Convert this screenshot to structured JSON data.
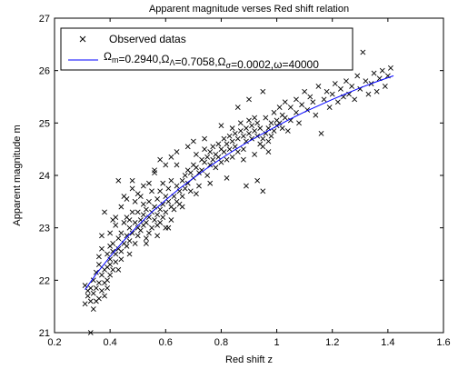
{
  "chart_data": {
    "type": "scatter",
    "title": "Apparent magnitude verses Red shift relation",
    "xlabel": "Red shift z",
    "ylabel": "Apparent magnitude m",
    "xlim": [
      0.2,
      1.6
    ],
    "ylim": [
      21,
      27
    ],
    "x_ticks": [
      "0.2",
      "0.4",
      "0.6",
      "0.8",
      "1",
      "1.2",
      "1.4",
      "1.6"
    ],
    "y_ticks": [
      "21",
      "22",
      "23",
      "24",
      "25",
      "26",
      "27"
    ],
    "grid": false,
    "legend_position": "top-left",
    "legend": {
      "scatter_label": "Observed datas",
      "fit_label_parts": [
        {
          "text": "Ω",
          "sub": false
        },
        {
          "text": "m",
          "sub": true
        },
        {
          "text": "=0.2940,Ω",
          "sub": false
        },
        {
          "text": "Λ",
          "sub": true
        },
        {
          "text": "=0.7058,Ω",
          "sub": false
        },
        {
          "text": "σ",
          "sub": true
        },
        {
          "text": "=0.0002,ω=40000",
          "sub": false
        }
      ]
    },
    "colors": {
      "scatter": "#000000",
      "fit": "#0000ff"
    },
    "series": [
      {
        "name": "Observed datas",
        "marker": "x",
        "points": [
          [
            0.31,
            21.9
          ],
          [
            0.31,
            21.55
          ],
          [
            0.32,
            21.7
          ],
          [
            0.32,
            21.8
          ],
          [
            0.33,
            21.6
          ],
          [
            0.33,
            21.85
          ],
          [
            0.33,
            21.0
          ],
          [
            0.34,
            21.75
          ],
          [
            0.34,
            22.0
          ],
          [
            0.35,
            21.6
          ],
          [
            0.35,
            21.85
          ],
          [
            0.35,
            22.15
          ],
          [
            0.36,
            22.3
          ],
          [
            0.36,
            21.95
          ],
          [
            0.36,
            22.45
          ],
          [
            0.37,
            22.6
          ],
          [
            0.37,
            22.1
          ],
          [
            0.37,
            21.8
          ],
          [
            0.38,
            22.2
          ],
          [
            0.38,
            21.95
          ],
          [
            0.38,
            21.7
          ],
          [
            0.39,
            22.5
          ],
          [
            0.39,
            22.25
          ],
          [
            0.39,
            22.0
          ],
          [
            0.4,
            22.4
          ],
          [
            0.4,
            22.1
          ],
          [
            0.4,
            22.65
          ],
          [
            0.4,
            22.3
          ],
          [
            0.41,
            22.55
          ],
          [
            0.41,
            22.2
          ],
          [
            0.41,
            22.7
          ],
          [
            0.42,
            23.2
          ],
          [
            0.42,
            22.5
          ],
          [
            0.42,
            22.35
          ],
          [
            0.43,
            22.8
          ],
          [
            0.43,
            22.6
          ],
          [
            0.43,
            23.9
          ],
          [
            0.44,
            22.9
          ],
          [
            0.44,
            22.55
          ],
          [
            0.44,
            22.4
          ],
          [
            0.45,
            22.7
          ],
          [
            0.45,
            23.1
          ],
          [
            0.45,
            23.6
          ],
          [
            0.46,
            22.85
          ],
          [
            0.46,
            22.65
          ],
          [
            0.46,
            23.2
          ],
          [
            0.47,
            23.0
          ],
          [
            0.47,
            22.75
          ],
          [
            0.47,
            23.15
          ],
          [
            0.48,
            23.3
          ],
          [
            0.48,
            22.9
          ],
          [
            0.48,
            23.75
          ],
          [
            0.49,
            23.1
          ],
          [
            0.49,
            22.7
          ],
          [
            0.49,
            23.5
          ],
          [
            0.5,
            23.0
          ],
          [
            0.5,
            23.3
          ],
          [
            0.5,
            22.85
          ],
          [
            0.51,
            23.15
          ],
          [
            0.51,
            22.95
          ],
          [
            0.51,
            23.6
          ],
          [
            0.52,
            23.25
          ],
          [
            0.52,
            23.05
          ],
          [
            0.52,
            23.45
          ],
          [
            0.53,
            23.1
          ],
          [
            0.53,
            23.35
          ],
          [
            0.53,
            22.8
          ],
          [
            0.54,
            23.5
          ],
          [
            0.54,
            23.2
          ],
          [
            0.54,
            22.9
          ],
          [
            0.55,
            23.3
          ],
          [
            0.55,
            23.0
          ],
          [
            0.55,
            23.7
          ],
          [
            0.56,
            23.15
          ],
          [
            0.56,
            23.4
          ],
          [
            0.56,
            24.1
          ],
          [
            0.57,
            23.25
          ],
          [
            0.57,
            23.55
          ],
          [
            0.57,
            23.05
          ],
          [
            0.58,
            23.35
          ],
          [
            0.58,
            23.7
          ],
          [
            0.58,
            23.1
          ],
          [
            0.59,
            23.45
          ],
          [
            0.59,
            23.2
          ],
          [
            0.59,
            23.85
          ],
          [
            0.6,
            23.6
          ],
          [
            0.6,
            23.3
          ],
          [
            0.6,
            23.0
          ],
          [
            0.61,
            23.5
          ],
          [
            0.61,
            23.75
          ],
          [
            0.62,
            23.4
          ],
          [
            0.62,
            23.9
          ],
          [
            0.62,
            23.15
          ],
          [
            0.63,
            23.6
          ],
          [
            0.63,
            23.35
          ],
          [
            0.64,
            23.8
          ],
          [
            0.64,
            23.5
          ],
          [
            0.64,
            24.2
          ],
          [
            0.65,
            23.7
          ],
          [
            0.65,
            23.45
          ],
          [
            0.66,
            23.9
          ],
          [
            0.66,
            23.6
          ],
          [
            0.67,
            24.0
          ],
          [
            0.67,
            23.75
          ],
          [
            0.68,
            24.1
          ],
          [
            0.68,
            23.85
          ],
          [
            0.69,
            24.05
          ],
          [
            0.69,
            23.7
          ],
          [
            0.7,
            24.2
          ],
          [
            0.7,
            23.95
          ],
          [
            0.71,
            24.15
          ],
          [
            0.71,
            24.4
          ],
          [
            0.72,
            24.05
          ],
          [
            0.72,
            23.8
          ],
          [
            0.73,
            24.3
          ],
          [
            0.73,
            24.1
          ],
          [
            0.74,
            24.25
          ],
          [
            0.74,
            24.5
          ],
          [
            0.75,
            24.35
          ],
          [
            0.75,
            24.0
          ],
          [
            0.76,
            24.45
          ],
          [
            0.76,
            24.2
          ],
          [
            0.77,
            24.55
          ],
          [
            0.77,
            24.3
          ],
          [
            0.78,
            24.4
          ],
          [
            0.78,
            24.15
          ],
          [
            0.79,
            24.6
          ],
          [
            0.79,
            24.35
          ],
          [
            0.8,
            24.5
          ],
          [
            0.8,
            24.25
          ],
          [
            0.81,
            24.7
          ],
          [
            0.81,
            24.45
          ],
          [
            0.82,
            24.6
          ],
          [
            0.82,
            24.3
          ],
          [
            0.83,
            24.75
          ],
          [
            0.83,
            24.5
          ],
          [
            0.84,
            24.65
          ],
          [
            0.84,
            24.9
          ],
          [
            0.85,
            24.55
          ],
          [
            0.85,
            24.8
          ],
          [
            0.86,
            24.7
          ],
          [
            0.86,
            24.45
          ],
          [
            0.87,
            24.85
          ],
          [
            0.87,
            25.0
          ],
          [
            0.88,
            24.75
          ],
          [
            0.88,
            24.5
          ],
          [
            0.89,
            24.9
          ],
          [
            0.89,
            24.65
          ],
          [
            0.9,
            25.05
          ],
          [
            0.9,
            24.8
          ],
          [
            0.91,
            24.95
          ],
          [
            0.91,
            24.7
          ],
          [
            0.92,
            25.1
          ],
          [
            0.92,
            24.85
          ],
          [
            0.93,
            24.75
          ],
          [
            0.93,
            25.0
          ],
          [
            0.94,
            24.6
          ],
          [
            0.94,
            24.9
          ],
          [
            0.95,
            24.7
          ],
          [
            0.95,
            24.55
          ],
          [
            0.96,
            24.8
          ],
          [
            0.96,
            25.1
          ],
          [
            0.97,
            24.65
          ],
          [
            0.97,
            24.9
          ],
          [
            0.98,
            25.0
          ],
          [
            0.98,
            24.75
          ],
          [
            0.99,
            25.2
          ],
          [
            0.99,
            24.85
          ],
          [
            1.0,
            25.05
          ],
          [
            1.0,
            24.95
          ],
          [
            1.01,
            25.3
          ],
          [
            1.01,
            25.0
          ],
          [
            1.02,
            25.15
          ],
          [
            1.02,
            24.9
          ],
          [
            1.03,
            25.4
          ],
          [
            1.03,
            25.1
          ],
          [
            1.05,
            25.3
          ],
          [
            1.05,
            25.05
          ],
          [
            1.07,
            25.45
          ],
          [
            1.07,
            25.2
          ],
          [
            1.09,
            25.35
          ],
          [
            1.1,
            25.6
          ],
          [
            1.11,
            25.25
          ],
          [
            1.12,
            25.5
          ],
          [
            1.13,
            25.4
          ],
          [
            1.14,
            25.15
          ],
          [
            1.15,
            25.7
          ],
          [
            1.16,
            24.8
          ],
          [
            1.17,
            25.45
          ],
          [
            1.18,
            25.6
          ],
          [
            1.19,
            25.3
          ],
          [
            1.2,
            25.55
          ],
          [
            1.21,
            25.75
          ],
          [
            1.22,
            25.4
          ],
          [
            1.23,
            25.65
          ],
          [
            1.24,
            25.5
          ],
          [
            1.25,
            25.8
          ],
          [
            1.26,
            25.55
          ],
          [
            1.27,
            25.7
          ],
          [
            1.28,
            25.45
          ],
          [
            1.29,
            25.9
          ],
          [
            1.3,
            25.65
          ],
          [
            1.31,
            26.35
          ],
          [
            1.32,
            25.8
          ],
          [
            1.33,
            25.55
          ],
          [
            1.34,
            25.75
          ],
          [
            1.35,
            25.95
          ],
          [
            1.36,
            25.6
          ],
          [
            1.37,
            25.85
          ],
          [
            1.38,
            26.0
          ],
          [
            1.39,
            25.7
          ],
          [
            1.4,
            25.9
          ],
          [
            1.41,
            26.05
          ],
          [
            0.93,
            23.9
          ],
          [
            0.95,
            23.7
          ],
          [
            0.89,
            23.8
          ],
          [
            0.82,
            23.95
          ],
          [
            0.76,
            23.85
          ],
          [
            0.71,
            23.65
          ],
          [
            0.66,
            23.4
          ],
          [
            0.61,
            23.0
          ],
          [
            0.57,
            22.85
          ],
          [
            0.53,
            22.7
          ],
          [
            0.47,
            22.5
          ],
          [
            0.43,
            22.2
          ],
          [
            0.39,
            21.85
          ],
          [
            0.36,
            21.65
          ],
          [
            0.34,
            21.45
          ],
          [
            0.37,
            22.85
          ],
          [
            0.4,
            22.9
          ],
          [
            0.42,
            23.05
          ],
          [
            0.46,
            23.55
          ],
          [
            0.5,
            23.65
          ],
          [
            0.54,
            23.85
          ],
          [
            0.58,
            24.3
          ],
          [
            0.62,
            24.35
          ],
          [
            0.68,
            24.55
          ],
          [
            0.74,
            24.7
          ],
          [
            0.8,
            24.95
          ],
          [
            0.86,
            25.3
          ],
          [
            0.9,
            25.45
          ],
          [
            0.95,
            25.6
          ],
          [
            0.38,
            23.3
          ],
          [
            0.41,
            23.15
          ],
          [
            0.44,
            23.4
          ],
          [
            0.48,
            23.9
          ],
          [
            0.52,
            23.8
          ],
          [
            0.56,
            24.05
          ],
          [
            0.6,
            24.2
          ],
          [
            0.64,
            24.45
          ],
          [
            0.7,
            24.65
          ],
          [
            0.84,
            24.35
          ],
          [
            0.88,
            24.3
          ],
          [
            0.92,
            24.4
          ],
          [
            0.97,
            24.45
          ],
          [
            1.04,
            24.85
          ],
          [
            1.08,
            25.0
          ]
        ]
      },
      {
        "name": "Ωm=0.2940,ΩΛ=0.7058,Ωσ=0.0002,ω=40000",
        "line": true,
        "points": [
          [
            0.31,
            21.82
          ],
          [
            0.35,
            22.12
          ],
          [
            0.4,
            22.45
          ],
          [
            0.45,
            22.76
          ],
          [
            0.5,
            23.04
          ],
          [
            0.55,
            23.3
          ],
          [
            0.6,
            23.53
          ],
          [
            0.65,
            23.75
          ],
          [
            0.7,
            23.95
          ],
          [
            0.75,
            24.14
          ],
          [
            0.8,
            24.32
          ],
          [
            0.85,
            24.49
          ],
          [
            0.9,
            24.65
          ],
          [
            0.95,
            24.8
          ],
          [
            1.0,
            24.94
          ],
          [
            1.05,
            25.08
          ],
          [
            1.1,
            25.21
          ],
          [
            1.15,
            25.33
          ],
          [
            1.2,
            25.45
          ],
          [
            1.25,
            25.56
          ],
          [
            1.3,
            25.67
          ],
          [
            1.35,
            25.77
          ],
          [
            1.42,
            25.9
          ]
        ]
      }
    ]
  }
}
